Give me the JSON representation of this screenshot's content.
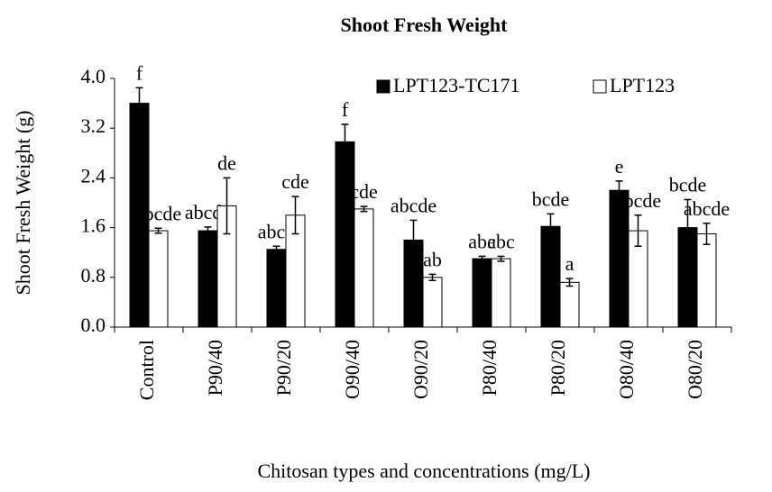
{
  "chart_data": {
    "type": "bar",
    "title": "Shoot Fresh Weight",
    "x_label": "Chitosan types and concentrations (mg/L)",
    "y_label": "Shoot Fresh Weight (g)",
    "categories": [
      "Control",
      "P90/40",
      "P90/20",
      "O90/40",
      "O90/20",
      "P80/40",
      "P80/20",
      "O80/40",
      "O80/20"
    ],
    "series": [
      {
        "name": "LPT123-TC171",
        "color": "#000000",
        "values": [
          3.6,
          1.55,
          1.25,
          2.98,
          1.4,
          1.1,
          1.62,
          2.2,
          1.6
        ],
        "errors": [
          0.25,
          0.06,
          0.05,
          0.28,
          0.32,
          0.04,
          0.2,
          0.15,
          0.45
        ],
        "letters": [
          "f",
          "abcde",
          "abcd",
          "f",
          "abcde",
          "abc",
          "bcde",
          "e",
          "bcde"
        ]
      },
      {
        "name": "LPT123",
        "color": "#ffffff",
        "values": [
          1.55,
          1.95,
          1.8,
          1.9,
          0.8,
          1.1,
          0.72,
          1.55,
          1.5
        ],
        "errors": [
          0.04,
          0.45,
          0.3,
          0.04,
          0.05,
          0.04,
          0.06,
          0.25,
          0.17
        ],
        "letters": [
          "abcde",
          "de",
          "cde",
          "cde",
          "ab",
          "abc",
          "a",
          "abcde",
          "abcde"
        ]
      }
    ],
    "ylim": [
      0,
      4
    ],
    "yticks": [
      {
        "value": 0,
        "label": "0.0"
      },
      {
        "value": 0.8,
        "label": "0.8"
      },
      {
        "value": 1.6,
        "label": "1.6"
      },
      {
        "value": 2.4,
        "label": "2.4"
      },
      {
        "value": 3.2,
        "label": "3.2"
      },
      {
        "value": 4,
        "label": "4.0"
      }
    ],
    "grid": false,
    "legend": "top-right"
  }
}
